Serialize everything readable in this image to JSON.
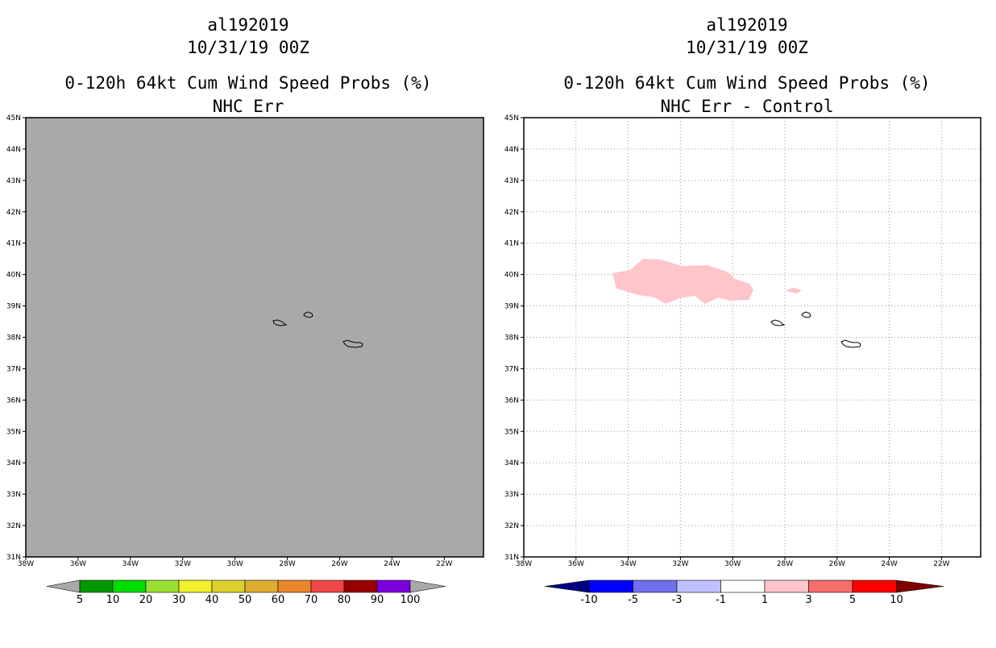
{
  "left_panel": {
    "storm_id": "al192019",
    "datetime": "10/31/19 00Z",
    "product": "0-120h 64kt Cum Wind Speed Probs (%)",
    "subtitle": "NHC Err",
    "field_color": "#a9a9a9",
    "colorbar": {
      "labels": [
        "5",
        "10",
        "20",
        "30",
        "40",
        "50",
        "60",
        "70",
        "80",
        "90",
        "100"
      ],
      "colors": [
        "#009900",
        "#00dd00",
        "#99e033",
        "#f0f02c",
        "#ddd02e",
        "#dfad2f",
        "#ea862c",
        "#f04848",
        "#980000",
        "#7a00dd"
      ],
      "under_color": "#a9a9a9",
      "over_color": "#a9a9a9"
    }
  },
  "right_panel": {
    "storm_id": "al192019",
    "datetime": "10/31/19 00Z",
    "product": "0-120h 64kt Cum Wind Speed Probs (%)",
    "subtitle": "NHC Err - Control",
    "field_color": "#ffffff",
    "anomaly_color": "#ffc5c8",
    "colorbar": {
      "labels": [
        "-10",
        "-5",
        "-3",
        "-1",
        "1",
        "3",
        "5",
        "10"
      ],
      "colors": [
        "#0000ff",
        "#7070ee",
        "#c0c0ff",
        "#ffffff",
        "#ffc5c8",
        "#f56e6e",
        "#ff0000"
      ],
      "under_color": "#000080",
      "over_color": "#800000"
    }
  },
  "map": {
    "lat_labels": [
      "31N",
      "32N",
      "33N",
      "34N",
      "35N",
      "36N",
      "37N",
      "38N",
      "39N",
      "40N",
      "41N",
      "42N",
      "43N",
      "44N",
      "45N"
    ],
    "lon_labels": [
      "38W",
      "36W",
      "34W",
      "32W",
      "30W",
      "28W",
      "26W",
      "24W",
      "22W"
    ],
    "lon_values": [
      -38,
      -36,
      -34,
      -32,
      -30,
      -28,
      -26,
      -24,
      -22
    ],
    "lat_values": [
      31,
      32,
      33,
      34,
      35,
      36,
      37,
      38,
      39,
      40,
      41,
      42,
      43,
      44,
      45
    ],
    "lon_range": [
      -38,
      -20.5
    ],
    "lat_range": [
      31,
      45
    ]
  }
}
